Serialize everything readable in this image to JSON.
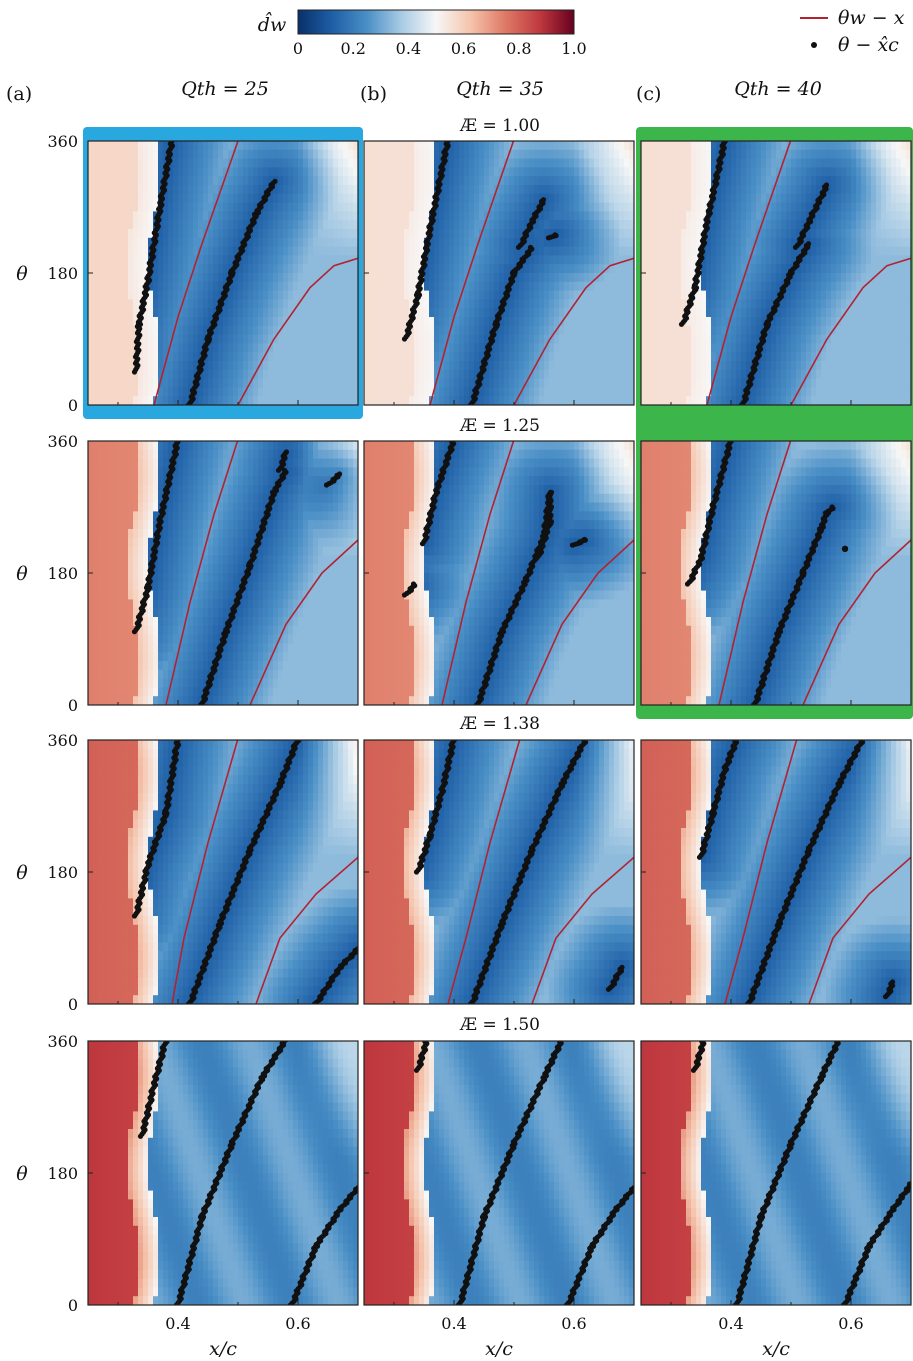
{
  "colorbar": {
    "label": "d̂w",
    "ticks": [
      "0",
      "0.2",
      "0.4",
      "0.6",
      "0.8",
      "1.0"
    ],
    "range": [
      0,
      1.0
    ],
    "colormap": [
      "#08306b",
      "#1f5fa6",
      "#4a8fc6",
      "#a8cbe4",
      "#f7f7f7",
      "#f5c4ac",
      "#de7a66",
      "#c0393f",
      "#67001f"
    ]
  },
  "legend": [
    {
      "label": "θw − x",
      "marker": "line",
      "color": "#b22230"
    },
    {
      "label": "θ − x̂c",
      "marker": "dot",
      "color": "#111111"
    }
  ],
  "column_headers": [
    {
      "tag": "(a)",
      "label": "Qth = 25"
    },
    {
      "tag": "(b)",
      "label": "Qth = 35"
    },
    {
      "tag": "(c)",
      "label": "Qth = 40"
    }
  ],
  "row_titles": [
    "Æ = 1.00",
    "Æ = 1.25",
    "Æ = 1.38",
    "Æ = 1.50"
  ],
  "axes": {
    "xlabel": "x/c",
    "ylabel": "θ",
    "xticks": [
      "0.4",
      "0.6"
    ],
    "yticks": [
      "0",
      "180",
      "360"
    ]
  },
  "chart_data": {
    "type": "heatmap",
    "title": "",
    "xlabel": "x/c",
    "ylabel": "θ",
    "xlim": [
      0.25,
      0.7
    ],
    "ylim": [
      0,
      360
    ],
    "xticks": [
      0.4,
      0.6
    ],
    "yticks": [
      0,
      180,
      360
    ],
    "colorbar_range": [
      0,
      1.0
    ],
    "highlight": [
      {
        "row": 0,
        "col": 0,
        "color": "#29a8e0"
      },
      {
        "rows": [
          0,
          1
        ],
        "col": 2,
        "color": "#3cb54a"
      }
    ],
    "panels": [
      {
        "row": 0,
        "col": 0,
        "Qth": 25,
        "AR": 1.0,
        "stall_value": 0.58,
        "dots": [
          [
            [
              0.33,
              45
            ],
            [
              0.335,
              110
            ],
            [
              0.35,
              170
            ],
            [
              0.37,
              270
            ],
            [
              0.39,
              362
            ]
          ],
          [
            [
              0.42,
              0
            ],
            [
              0.45,
              90
            ],
            [
              0.49,
              180
            ],
            [
              0.53,
              260
            ],
            [
              0.56,
              305
            ]
          ]
        ],
        "lines": [
          [
            [
              0.36,
              0
            ],
            [
              0.4,
              120
            ],
            [
              0.44,
              220
            ],
            [
              0.5,
              360
            ]
          ],
          [
            [
              0.5,
              0
            ],
            [
              0.56,
              90
            ],
            [
              0.62,
              160
            ],
            [
              0.66,
              190
            ],
            [
              0.7,
              200
            ]
          ]
        ]
      },
      {
        "row": 0,
        "col": 1,
        "Qth": 35,
        "AR": 1.0,
        "stall_value": 0.56,
        "dots": [
          [
            [
              0.32,
              90
            ],
            [
              0.34,
              150
            ],
            [
              0.36,
              240
            ],
            [
              0.39,
              362
            ]
          ],
          [
            [
              0.43,
              0
            ],
            [
              0.47,
              110
            ],
            [
              0.5,
              180
            ],
            [
              0.53,
              215
            ]
          ],
          [
            [
              0.51,
              215
            ],
            [
              0.53,
              250
            ],
            [
              0.55,
              280
            ]
          ],
          [
            [
              0.56,
              228
            ],
            [
              0.57,
              232
            ]
          ]
        ],
        "lines": [
          [
            [
              0.36,
              0
            ],
            [
              0.4,
              120
            ],
            [
              0.44,
              220
            ],
            [
              0.5,
              362
            ]
          ],
          [
            [
              0.5,
              0
            ],
            [
              0.56,
              90
            ],
            [
              0.62,
              160
            ],
            [
              0.66,
              190
            ],
            [
              0.7,
              200
            ]
          ]
        ]
      },
      {
        "row": 0,
        "col": 2,
        "Qth": 40,
        "AR": 1.0,
        "stall_value": 0.56,
        "dots": [
          [
            [
              0.32,
              110
            ],
            [
              0.34,
              160
            ],
            [
              0.36,
              250
            ],
            [
              0.39,
              362
            ]
          ],
          [
            [
              0.42,
              0
            ],
            [
              0.46,
              110
            ],
            [
              0.5,
              180
            ],
            [
              0.53,
              220
            ]
          ],
          [
            [
              0.51,
              215
            ],
            [
              0.53,
              250
            ],
            [
              0.56,
              300
            ]
          ]
        ],
        "lines": [
          [
            [
              0.36,
              0
            ],
            [
              0.4,
              120
            ],
            [
              0.44,
              220
            ],
            [
              0.5,
              362
            ]
          ],
          [
            [
              0.5,
              0
            ],
            [
              0.56,
              90
            ],
            [
              0.62,
              160
            ],
            [
              0.66,
              190
            ],
            [
              0.7,
              200
            ]
          ]
        ]
      },
      {
        "row": 1,
        "col": 0,
        "Qth": 25,
        "AR": 1.25,
        "stall_value": 0.74,
        "dots": [
          [
            [
              0.33,
              100
            ],
            [
              0.35,
              160
            ],
            [
              0.37,
              250
            ],
            [
              0.4,
              362
            ]
          ],
          [
            [
              0.44,
              0
            ],
            [
              0.48,
              100
            ],
            [
              0.52,
              190
            ],
            [
              0.56,
              290
            ],
            [
              0.58,
              320
            ]
          ],
          [
            [
              0.57,
              320
            ],
            [
              0.58,
              345
            ]
          ],
          [
            [
              0.65,
              300
            ],
            [
              0.67,
              315
            ]
          ]
        ],
        "lines": [
          [
            [
              0.38,
              0
            ],
            [
              0.42,
              140
            ],
            [
              0.46,
              260
            ],
            [
              0.5,
              362
            ]
          ],
          [
            [
              0.52,
              0
            ],
            [
              0.58,
              110
            ],
            [
              0.64,
              180
            ],
            [
              0.7,
              225
            ]
          ]
        ]
      },
      {
        "row": 1,
        "col": 1,
        "Qth": 35,
        "AR": 1.25,
        "stall_value": 0.74,
        "dots": [
          [
            [
              0.32,
              150
            ],
            [
              0.335,
              165
            ]
          ],
          [
            [
              0.35,
              220
            ],
            [
              0.37,
              290
            ],
            [
              0.4,
              362
            ]
          ],
          [
            [
              0.44,
              0
            ],
            [
              0.48,
              100
            ],
            [
              0.52,
              170
            ],
            [
              0.55,
              230
            ],
            [
              0.56,
              290
            ]
          ],
          [
            [
              0.54,
              200
            ],
            [
              0.56,
              250
            ],
            [
              0.56,
              290
            ]
          ],
          [
            [
              0.6,
              218
            ],
            [
              0.62,
              226
            ]
          ]
        ],
        "lines": [
          [
            [
              0.38,
              0
            ],
            [
              0.42,
              140
            ],
            [
              0.46,
              260
            ],
            [
              0.5,
              362
            ]
          ],
          [
            [
              0.52,
              0
            ],
            [
              0.58,
              110
            ],
            [
              0.64,
              180
            ],
            [
              0.7,
              225
            ]
          ]
        ]
      },
      {
        "row": 1,
        "col": 2,
        "Qth": 40,
        "AR": 1.25,
        "stall_value": 0.74,
        "dots": [
          [
            [
              0.33,
              165
            ],
            [
              0.35,
              200
            ],
            [
              0.37,
              270
            ],
            [
              0.4,
              362
            ]
          ],
          [
            [
              0.44,
              0
            ],
            [
              0.48,
              100
            ],
            [
              0.52,
              180
            ],
            [
              0.55,
              240
            ],
            [
              0.56,
              262
            ]
          ],
          [
            [
              0.56,
              262
            ],
            [
              0.57,
              270
            ]
          ],
          [
            [
              0.59,
              213
            ]
          ]
        ],
        "lines": [
          [
            [
              0.38,
              0
            ],
            [
              0.42,
              140
            ],
            [
              0.46,
              260
            ],
            [
              0.5,
              362
            ]
          ],
          [
            [
              0.52,
              0
            ],
            [
              0.58,
              110
            ],
            [
              0.64,
              180
            ],
            [
              0.7,
              225
            ]
          ]
        ]
      },
      {
        "row": 2,
        "col": 0,
        "Qth": 25,
        "AR": 1.38,
        "stall_value": 0.8,
        "dots": [
          [
            [
              0.33,
              120
            ],
            [
              0.35,
              190
            ],
            [
              0.38,
              260
            ],
            [
              0.4,
              362
            ]
          ],
          [
            [
              0.42,
              0
            ],
            [
              0.47,
              110
            ],
            [
              0.52,
              210
            ],
            [
              0.57,
              300
            ],
            [
              0.6,
              362
            ]
          ],
          [
            [
              0.63,
              0
            ],
            [
              0.67,
              50
            ],
            [
              0.7,
              75
            ]
          ]
        ],
        "lines": [
          [
            [
              0.39,
              0
            ],
            [
              0.41,
              90
            ],
            [
              0.45,
              220
            ],
            [
              0.5,
              362
            ]
          ],
          [
            [
              0.53,
              0
            ],
            [
              0.57,
              90
            ],
            [
              0.63,
              150
            ],
            [
              0.7,
              200
            ]
          ]
        ]
      },
      {
        "row": 2,
        "col": 1,
        "Qth": 35,
        "AR": 1.38,
        "stall_value": 0.8,
        "dots": [
          [
            [
              0.34,
              180
            ],
            [
              0.36,
              230
            ],
            [
              0.38,
              290
            ],
            [
              0.4,
              362
            ]
          ],
          [
            [
              0.43,
              0
            ],
            [
              0.48,
              110
            ],
            [
              0.53,
              210
            ],
            [
              0.58,
              300
            ],
            [
              0.62,
              362
            ]
          ],
          [
            [
              0.66,
              20
            ],
            [
              0.68,
              50
            ]
          ]
        ],
        "lines": [
          [
            [
              0.39,
              0
            ],
            [
              0.42,
              90
            ],
            [
              0.46,
              220
            ],
            [
              0.51,
              362
            ]
          ],
          [
            [
              0.53,
              0
            ],
            [
              0.57,
              90
            ],
            [
              0.63,
              150
            ],
            [
              0.7,
              200
            ]
          ]
        ]
      },
      {
        "row": 2,
        "col": 2,
        "Qth": 40,
        "AR": 1.38,
        "stall_value": 0.8,
        "dots": [
          [
            [
              0.35,
              200
            ],
            [
              0.37,
              260
            ],
            [
              0.39,
              320
            ],
            [
              0.41,
              362
            ]
          ],
          [
            [
              0.43,
              0
            ],
            [
              0.48,
              110
            ],
            [
              0.53,
              210
            ],
            [
              0.58,
              300
            ],
            [
              0.62,
              362
            ]
          ],
          [
            [
              0.66,
              10
            ],
            [
              0.67,
              30
            ]
          ]
        ],
        "lines": [
          [
            [
              0.39,
              0
            ],
            [
              0.42,
              90
            ],
            [
              0.46,
              220
            ],
            [
              0.51,
              362
            ]
          ],
          [
            [
              0.53,
              0
            ],
            [
              0.57,
              90
            ],
            [
              0.63,
              150
            ],
            [
              0.7,
              200
            ]
          ]
        ]
      },
      {
        "row": 3,
        "col": 0,
        "Qth": 25,
        "AR": 1.5,
        "stall_value": 0.88,
        "dots": [
          [
            [
              0.34,
              230
            ],
            [
              0.36,
              300
            ],
            [
              0.38,
              362
            ]
          ],
          [
            [
              0.4,
              0
            ],
            [
              0.44,
              120
            ],
            [
              0.49,
              220
            ],
            [
              0.54,
              310
            ],
            [
              0.58,
              362
            ]
          ],
          [
            [
              0.59,
              0
            ],
            [
              0.63,
              80
            ],
            [
              0.67,
              130
            ],
            [
              0.7,
              160
            ]
          ]
        ],
        "lines": []
      },
      {
        "row": 3,
        "col": 1,
        "Qth": 35,
        "AR": 1.5,
        "stall_value": 0.88,
        "dots": [
          [
            [
              0.34,
              320
            ],
            [
              0.355,
              362
            ]
          ],
          [
            [
              0.41,
              0
            ],
            [
              0.45,
              120
            ],
            [
              0.5,
              220
            ],
            [
              0.55,
              310
            ],
            [
              0.58,
              362
            ]
          ],
          [
            [
              0.59,
              0
            ],
            [
              0.63,
              80
            ],
            [
              0.67,
              130
            ],
            [
              0.7,
              160
            ]
          ]
        ],
        "lines": []
      },
      {
        "row": 3,
        "col": 2,
        "Qth": 40,
        "AR": 1.5,
        "stall_value": 0.88,
        "dots": [
          [
            [
              0.34,
              320
            ],
            [
              0.355,
              362
            ]
          ],
          [
            [
              0.41,
              0
            ],
            [
              0.45,
              120
            ],
            [
              0.5,
              220
            ],
            [
              0.55,
              310
            ],
            [
              0.58,
              362
            ]
          ],
          [
            [
              0.59,
              0
            ],
            [
              0.63,
              80
            ],
            [
              0.67,
              130
            ],
            [
              0.7,
              165
            ]
          ]
        ],
        "lines": []
      }
    ]
  }
}
